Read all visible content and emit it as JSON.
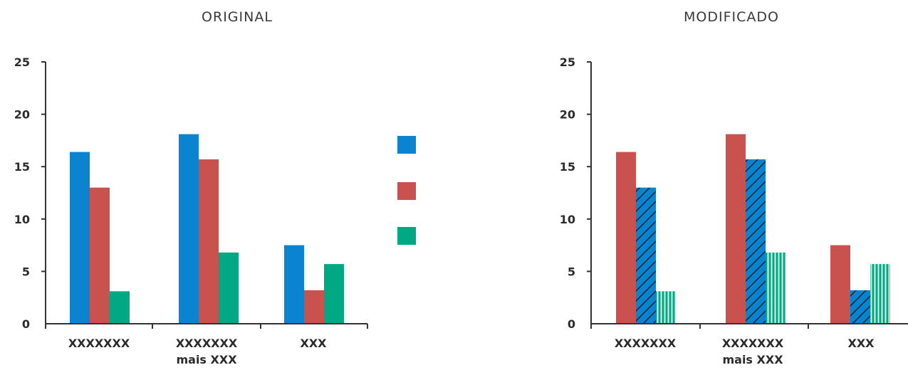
{
  "chart_data": [
    {
      "type": "bar",
      "title": "ORIGINAL",
      "categories": [
        [
          "XXXXXXX"
        ],
        [
          "XXXXXXX",
          "mais XXX"
        ],
        [
          "XXX"
        ]
      ],
      "yticks": [
        "0",
        "5",
        "10",
        "15",
        "20",
        "25"
      ],
      "ylim": [
        0,
        25
      ],
      "legend": "right",
      "series": [
        {
          "values": [
            16.4,
            18.1,
            7.5
          ],
          "color": "#0A84CE",
          "pattern": "solid"
        },
        {
          "values": [
            13.0,
            15.7,
            3.2
          ],
          "color": "#C9524E",
          "pattern": "solid"
        },
        {
          "values": [
            3.1,
            6.8,
            5.7
          ],
          "color": "#00A884",
          "pattern": "solid"
        }
      ]
    },
    {
      "type": "bar",
      "title": "MODIFICADO",
      "categories": [
        [
          "XXXXXXX"
        ],
        [
          "XXXXXXX",
          "mais XXX"
        ],
        [
          "XXX"
        ]
      ],
      "yticks": [
        "0",
        "5",
        "10",
        "15",
        "20",
        "25"
      ],
      "ylim": [
        0,
        25
      ],
      "series": [
        {
          "values": [
            16.4,
            18.1,
            7.5
          ],
          "color": "#C9524E",
          "pattern": "solid"
        },
        {
          "values": [
            13.0,
            15.7,
            3.2
          ],
          "color": "#0A84CE",
          "pattern": "diagonal"
        },
        {
          "values": [
            3.1,
            6.8,
            5.7
          ],
          "color": "#00A884",
          "pattern": "vertical"
        }
      ]
    }
  ]
}
